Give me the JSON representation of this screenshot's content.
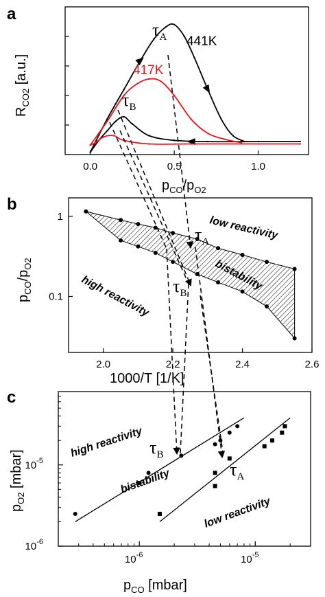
{
  "panels": [
    {
      "letter": "a"
    },
    {
      "letter": "b"
    },
    {
      "letter": "c"
    }
  ],
  "chart_data": [
    {
      "panel": "a",
      "type": "line",
      "xlabel": {
        "main": "p",
        "sub1": "CO",
        "sep": "/p",
        "sub2": "O2"
      },
      "ylabel": {
        "main": "R",
        "sub": "CO2",
        "tail": " [a.u.]"
      },
      "xlim": [
        -0.15,
        1.3
      ],
      "ylim": [
        0,
        1.25
      ],
      "xticks": [
        {
          "v": 0.0,
          "label": "0.0"
        },
        {
          "v": 0.5,
          "label": "0.5"
        },
        {
          "v": 1.0,
          "label": "1.0"
        }
      ],
      "series": [
        {
          "name": "441K",
          "color": "#000000",
          "forward": [
            [
              0,
              0.02
            ],
            [
              0.1,
              0.3
            ],
            [
              0.2,
              0.55
            ],
            [
              0.3,
              0.8
            ],
            [
              0.38,
              0.98
            ],
            [
              0.45,
              1.08
            ],
            [
              0.5,
              1.1
            ],
            [
              0.56,
              1.0
            ],
            [
              0.62,
              0.82
            ],
            [
              0.7,
              0.55
            ],
            [
              0.78,
              0.3
            ],
            [
              0.85,
              0.16
            ],
            [
              0.92,
              0.11
            ]
          ],
          "backward": [
            [
              1.25,
              0.11
            ],
            [
              1.0,
              0.11
            ],
            [
              0.7,
              0.11
            ],
            [
              0.5,
              0.12
            ],
            [
              0.35,
              0.16
            ],
            [
              0.25,
              0.26
            ],
            [
              0.2,
              0.32
            ],
            [
              0.15,
              0.28
            ],
            [
              0.1,
              0.2
            ],
            [
              0.05,
              0.12
            ],
            [
              0,
              0.02
            ]
          ]
        },
        {
          "name": "417K",
          "color": "#e8141c",
          "forward": [
            [
              0,
              0.08
            ],
            [
              0.1,
              0.28
            ],
            [
              0.2,
              0.5
            ],
            [
              0.28,
              0.6
            ],
            [
              0.35,
              0.64
            ],
            [
              0.42,
              0.62
            ],
            [
              0.5,
              0.5
            ],
            [
              0.6,
              0.3
            ],
            [
              0.7,
              0.18
            ],
            [
              0.8,
              0.13
            ],
            [
              0.9,
              0.1
            ]
          ],
          "backward": [
            [
              1.25,
              0.09
            ],
            [
              1.0,
              0.09
            ],
            [
              0.6,
              0.09
            ],
            [
              0.35,
              0.09
            ],
            [
              0.2,
              0.12
            ],
            [
              0.14,
              0.16
            ],
            [
              0.08,
              0.15
            ],
            [
              0.03,
              0.1
            ],
            [
              0,
              0.08
            ]
          ]
        }
      ],
      "annotations": {
        "tauA": {
          "main": "τ",
          "sub": "A"
        },
        "tauB": {
          "main": "τ",
          "sub": "B"
        }
      }
    },
    {
      "panel": "b",
      "type": "scatter",
      "xlabel": "1000/T [1/K]",
      "ylabel": {
        "main": "p",
        "sub1": "CO",
        "sep": "/p",
        "sub2": "O2"
      },
      "xlim": [
        1.9,
        2.6
      ],
      "ylim": [
        0.02,
        1.7
      ],
      "yscale": "log",
      "xticks": [
        {
          "v": 2.0,
          "label": "2.0"
        },
        {
          "v": 2.2,
          "label": "2.2"
        },
        {
          "v": 2.4,
          "label": "2.4"
        },
        {
          "v": 2.6,
          "label": "2.6"
        }
      ],
      "yticks": [
        {
          "v": 1,
          "label": "1"
        },
        {
          "v": 0.1,
          "label": "0.1"
        }
      ],
      "upper_boundary": [
        [
          1.95,
          1.15
        ],
        [
          2.05,
          0.9
        ],
        [
          2.1,
          0.8
        ],
        [
          2.15,
          0.72
        ],
        [
          2.2,
          0.62
        ],
        [
          2.27,
          0.52
        ],
        [
          2.33,
          0.4
        ],
        [
          2.4,
          0.33
        ],
        [
          2.47,
          0.27
        ],
        [
          2.55,
          0.22
        ]
      ],
      "lower_boundary": [
        [
          2.05,
          0.5
        ],
        [
          2.1,
          0.42
        ],
        [
          2.15,
          0.35
        ],
        [
          2.2,
          0.27
        ],
        [
          2.27,
          0.19
        ],
        [
          2.33,
          0.15
        ],
        [
          2.4,
          0.115
        ],
        [
          2.47,
          0.075
        ],
        [
          2.55,
          0.03
        ]
      ],
      "regions": {
        "low": "low reactivity",
        "bistable": "bistability",
        "high": "high reactivity"
      },
      "annotations": {
        "tauA": {
          "main": "τ",
          "sub": "A"
        },
        "tauB": {
          "main": "τ",
          "sub": "B"
        }
      }
    },
    {
      "panel": "c",
      "type": "scatter",
      "xlabel": {
        "main": "p",
        "sub": "CO",
        "tail": " [mbar]"
      },
      "ylabel": {
        "main": "p",
        "sub": "O2",
        "tail": " [mbar]"
      },
      "xscale": "log",
      "yscale": "log",
      "xlim": [
        2e-07,
        3e-05
      ],
      "ylim": [
        1e-06,
        8e-05
      ],
      "xticks": [
        {
          "v": 1e-06,
          "base": "10",
          "exp": "-6"
        },
        {
          "v": 1e-05,
          "base": "10",
          "exp": "-5"
        }
      ],
      "yticks": [
        {
          "v": 1e-05,
          "base": "10",
          "exp": "-5"
        },
        {
          "v": 1e-06,
          "base": "10",
          "exp": "-6"
        }
      ],
      "series": [
        {
          "name": "upper",
          "marker": "circle",
          "points": [
            [
              2.8e-07,
              2.5e-06
            ],
            [
              1e-06,
              6e-06
            ],
            [
              1.2e-06,
              8e-06
            ],
            [
              2.3e-06,
              1.3e-05
            ],
            [
              4.5e-06,
              1.8e-05
            ],
            [
              5e-06,
              2e-05
            ],
            [
              6e-06,
              2.5e-05
            ],
            [
              7e-06,
              3e-05
            ]
          ],
          "fit": [
            [
              2.8e-07,
              2e-06
            ],
            [
              8e-06,
              3.8e-05
            ]
          ]
        },
        {
          "name": "lower",
          "marker": "square",
          "points": [
            [
              1.5e-06,
              2.5e-06
            ],
            [
              4.5e-06,
              5.5e-06
            ],
            [
              4.5e-06,
              8e-06
            ],
            [
              6e-06,
              1.2e-05
            ],
            [
              1.2e-05,
              1.7e-05
            ],
            [
              1.4e-05,
              2e-05
            ],
            [
              1.7e-05,
              2.5e-05
            ],
            [
              1.8e-05,
              3e-05
            ]
          ],
          "fit": [
            [
              1.5e-06,
              2e-06
            ],
            [
              2e-05,
              3.8e-05
            ]
          ]
        }
      ],
      "regions": {
        "high": "high reactivity",
        "bistable": "bistability",
        "low": "low reactivity"
      },
      "annotations": {
        "tauA": {
          "main": "τ",
          "sub": "A"
        },
        "tauB": {
          "main": "τ",
          "sub": "B"
        }
      }
    }
  ]
}
